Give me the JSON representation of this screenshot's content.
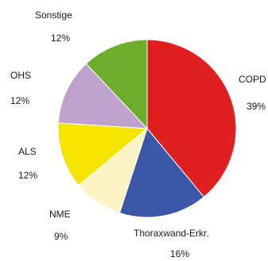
{
  "chart_data": {
    "type": "pie",
    "slices": [
      {
        "name": "COPD",
        "value": 39,
        "value_label": "39%",
        "color": "#e02020"
      },
      {
        "name": "Thoraxwand-Erkr.",
        "value": 16,
        "value_label": "16%",
        "color": "#3a57a8"
      },
      {
        "name": "NME",
        "value": 9,
        "value_label": "9%",
        "color": "#fbf3c4"
      },
      {
        "name": "ALS",
        "value": 12,
        "value_label": "12%",
        "color": "#f5e400"
      },
      {
        "name": "OHS",
        "value": 12,
        "value_label": "12%",
        "color": "#bfa2cc"
      },
      {
        "name": "Sonstige",
        "value": 12,
        "value_label": "12%",
        "color": "#6cad2c"
      }
    ],
    "start": "12 o'clock",
    "direction": "clockwise",
    "legend": "none"
  }
}
